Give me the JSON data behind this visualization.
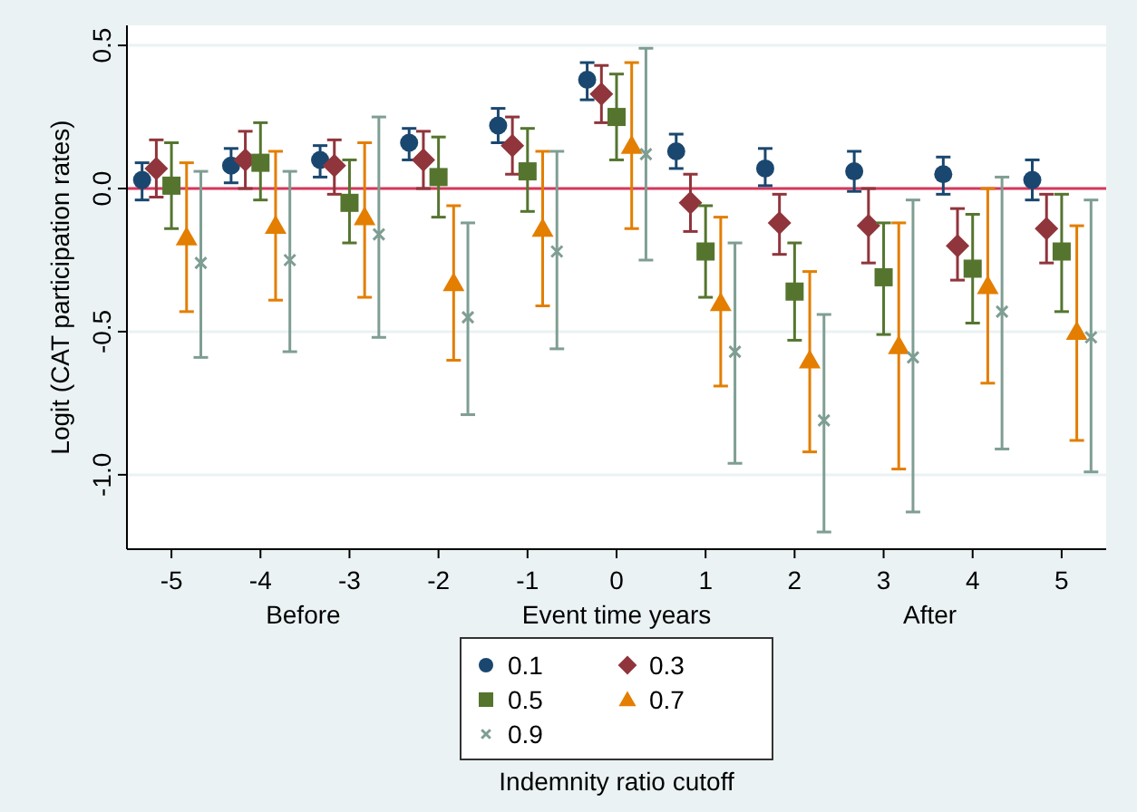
{
  "chart_data": {
    "type": "scatter",
    "xlabel": "Event time years",
    "ylabel": "Logit (CAT participation rates)",
    "legend_title": "Indemnity ratio cutoff",
    "legend": "bottom",
    "grid": "y",
    "xlim": [
      -5.5,
      5.5
    ],
    "xticks": [
      -5,
      -4,
      -3,
      -2,
      -1,
      0,
      1,
      2,
      3,
      4,
      5
    ],
    "ylim": [
      -1.26,
      0.57
    ],
    "yticks": [
      {
        "value": -1,
        "label": "-1.0"
      },
      {
        "value": -0.5,
        "label": "-0.5"
      },
      {
        "value": 0,
        "label": "0.0"
      },
      {
        "value": 0.5,
        "label": "0.5"
      }
    ],
    "ref_lines": [
      {
        "axis": "y",
        "value": 0,
        "color": "#d8365c"
      }
    ],
    "annotations": [
      "Before",
      "After"
    ],
    "series": [
      {
        "name": "0.1",
        "color": "#1a476f",
        "marker": "circle",
        "x": [
          -5.33,
          -4.33,
          -3.33,
          -2.33,
          -1.33,
          -0.33,
          0.67,
          1.67,
          2.67,
          3.67,
          4.67
        ],
        "values": [
          0.03,
          0.08,
          0.1,
          0.16,
          0.22,
          0.38,
          0.13,
          0.07,
          0.06,
          0.05,
          0.03
        ],
        "errors": [
          [
            -0.04,
            0.09
          ],
          [
            0.02,
            0.14
          ],
          [
            0.04,
            0.15
          ],
          [
            0.1,
            0.21
          ],
          [
            0.16,
            0.28
          ],
          [
            0.31,
            0.44
          ],
          [
            0.07,
            0.19
          ],
          [
            0.01,
            0.14
          ],
          [
            -0.01,
            0.13
          ],
          [
            -0.02,
            0.11
          ],
          [
            -0.04,
            0.1
          ]
        ]
      },
      {
        "name": "0.3",
        "color": "#90353b",
        "marker": "diamond",
        "x": [
          -5.17,
          -4.17,
          -3.17,
          -2.17,
          -1.17,
          -0.17,
          0.83,
          1.83,
          2.83,
          3.83,
          4.83
        ],
        "values": [
          0.07,
          0.1,
          0.08,
          0.1,
          0.15,
          0.33,
          -0.05,
          -0.12,
          -0.13,
          -0.2,
          -0.14
        ],
        "errors": [
          [
            -0.03,
            0.17
          ],
          [
            0,
            0.2
          ],
          [
            -0.02,
            0.17
          ],
          [
            0,
            0.2
          ],
          [
            0.05,
            0.25
          ],
          [
            0.23,
            0.43
          ],
          [
            -0.15,
            0.05
          ],
          [
            -0.23,
            -0.02
          ],
          [
            -0.26,
            0
          ],
          [
            -0.32,
            -0.07
          ],
          [
            -0.26,
            -0.02
          ]
        ]
      },
      {
        "name": "0.5",
        "color": "#55752f",
        "marker": "square",
        "x": [
          -5,
          -4,
          -3,
          -2,
          -1,
          0,
          1,
          2,
          3,
          4,
          5
        ],
        "values": [
          0.01,
          0.09,
          -0.05,
          0.04,
          0.06,
          0.25,
          -0.22,
          -0.36,
          -0.31,
          -0.28,
          -0.22
        ],
        "errors": [
          [
            -0.14,
            0.16
          ],
          [
            -0.04,
            0.23
          ],
          [
            -0.19,
            0.1
          ],
          [
            -0.1,
            0.18
          ],
          [
            -0.08,
            0.21
          ],
          [
            0.1,
            0.4
          ],
          [
            -0.38,
            -0.06
          ],
          [
            -0.53,
            -0.19
          ],
          [
            -0.51,
            -0.12
          ],
          [
            -0.47,
            -0.09
          ],
          [
            -0.43,
            -0.02
          ]
        ]
      },
      {
        "name": "0.7",
        "color": "#e37e00",
        "marker": "triangle",
        "x": [
          -4.83,
          -3.83,
          -2.83,
          -1.83,
          -0.83,
          0.17,
          1.17,
          2.17,
          3.17,
          4.17,
          5.17
        ],
        "values": [
          -0.17,
          -0.13,
          -0.1,
          -0.33,
          -0.14,
          0.15,
          -0.4,
          -0.6,
          -0.55,
          -0.34,
          -0.5
        ],
        "errors": [
          [
            -0.43,
            0.09
          ],
          [
            -0.39,
            0.13
          ],
          [
            -0.38,
            0.16
          ],
          [
            -0.6,
            -0.06
          ],
          [
            -0.41,
            0.13
          ],
          [
            -0.14,
            0.44
          ],
          [
            -0.69,
            -0.1
          ],
          [
            -0.92,
            -0.29
          ],
          [
            -0.98,
            -0.12
          ],
          [
            -0.68,
            0
          ],
          [
            -0.88,
            -0.13
          ]
        ]
      },
      {
        "name": "0.9",
        "color": "#7f9e93",
        "marker": "cross",
        "x": [
          -4.67,
          -3.67,
          -2.67,
          -1.67,
          -0.67,
          0.33,
          1.33,
          2.33,
          3.33,
          4.33,
          5.33
        ],
        "values": [
          -0.26,
          -0.25,
          -0.16,
          -0.45,
          -0.22,
          0.12,
          -0.57,
          -0.81,
          -0.59,
          -0.43,
          -0.52
        ],
        "errors": [
          [
            -0.59,
            0.06
          ],
          [
            -0.57,
            0.06
          ],
          [
            -0.52,
            0.25
          ],
          [
            -0.79,
            -0.12
          ],
          [
            -0.56,
            0.13
          ],
          [
            -0.25,
            0.49
          ],
          [
            -0.96,
            -0.19
          ],
          [
            -1.2,
            -0.44
          ],
          [
            -1.13,
            -0.04
          ],
          [
            -0.91,
            0.04
          ],
          [
            -0.99,
            -0.04
          ]
        ]
      }
    ]
  }
}
